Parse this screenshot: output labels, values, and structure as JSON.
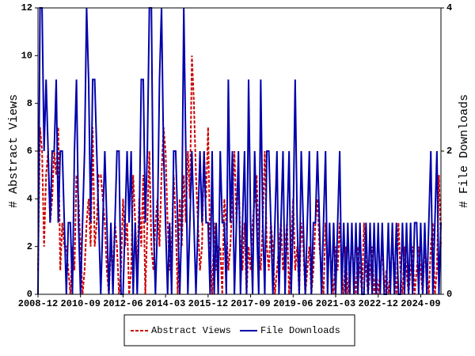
{
  "chart_data": {
    "type": "line",
    "x": [
      "2008-12",
      "2009-01",
      "2009-02",
      "2009-03",
      "2009-04",
      "2009-05",
      "2009-06",
      "2009-07",
      "2009-08",
      "2009-09",
      "2009-10",
      "2009-11",
      "2009-12",
      "2010-01",
      "2010-02",
      "2010-03",
      "2010-04",
      "2010-05",
      "2010-06",
      "2010-07",
      "2010-08",
      "2010-09",
      "2010-10",
      "2010-11",
      "2010-12",
      "2011-01",
      "2011-02",
      "2011-03",
      "2011-04",
      "2011-05",
      "2011-06",
      "2011-07",
      "2011-08",
      "2011-09",
      "2011-10",
      "2011-11",
      "2011-12",
      "2012-01",
      "2012-02",
      "2012-03",
      "2012-04",
      "2012-05",
      "2012-06",
      "2012-07",
      "2012-08",
      "2012-09",
      "2012-10",
      "2012-11",
      "2012-12",
      "2013-01",
      "2013-02",
      "2013-03",
      "2013-04",
      "2013-05",
      "2013-06",
      "2013-07",
      "2013-08",
      "2013-09",
      "2013-10",
      "2013-11",
      "2013-12",
      "2014-01",
      "2014-02",
      "2014-03",
      "2014-04",
      "2014-05",
      "2014-06",
      "2014-07",
      "2014-08",
      "2014-09",
      "2014-10",
      "2014-11",
      "2014-12",
      "2015-01",
      "2015-02",
      "2015-03",
      "2015-04",
      "2015-05",
      "2015-06",
      "2015-07",
      "2015-08",
      "2015-09",
      "2015-10",
      "2015-11",
      "2015-12",
      "2016-01",
      "2016-02",
      "2016-03",
      "2016-04",
      "2016-05",
      "2016-06",
      "2016-07",
      "2016-08",
      "2016-09",
      "2016-10",
      "2016-11",
      "2016-12",
      "2017-01",
      "2017-02",
      "2017-03",
      "2017-04",
      "2017-05",
      "2017-06",
      "2017-07",
      "2017-08",
      "2017-09",
      "2017-10",
      "2017-11",
      "2017-12",
      "2018-01",
      "2018-02",
      "2018-03",
      "2018-04",
      "2018-05",
      "2018-06",
      "2018-07",
      "2018-08",
      "2018-09",
      "2018-10",
      "2018-11",
      "2018-12",
      "2019-01",
      "2019-02",
      "2019-03",
      "2019-04",
      "2019-05",
      "2019-06",
      "2019-07",
      "2019-08",
      "2019-09",
      "2019-10",
      "2019-11",
      "2019-12",
      "2020-01",
      "2020-02",
      "2020-03",
      "2020-04",
      "2020-05",
      "2020-06",
      "2020-07",
      "2020-08",
      "2020-09",
      "2020-10",
      "2020-11",
      "2020-12",
      "2021-01",
      "2021-02",
      "2021-03",
      "2021-04",
      "2021-05",
      "2021-06",
      "2021-07",
      "2021-08",
      "2021-09",
      "2021-10",
      "2021-11",
      "2021-12",
      "2022-01",
      "2022-02",
      "2022-03",
      "2022-04",
      "2022-05",
      "2022-06",
      "2022-07",
      "2022-08",
      "2022-09",
      "2022-10",
      "2022-11",
      "2022-12",
      "2023-01",
      "2023-02",
      "2023-03",
      "2023-04",
      "2023-05",
      "2023-06",
      "2023-07",
      "2023-08",
      "2023-09",
      "2023-10",
      "2023-11",
      "2023-12",
      "2024-01",
      "2024-02",
      "2024-03",
      "2024-04",
      "2024-05",
      "2024-06",
      "2024-07",
      "2024-08",
      "2024-09",
      "2024-10",
      "2024-11",
      "2024-12",
      "2025-01",
      "2025-02",
      "2025-03",
      "2025-04",
      "2025-05",
      "2025-06",
      "2025-07"
    ],
    "xticks": [
      "2008-12",
      "2010-09",
      "2012-06",
      "2014-03",
      "2015-12",
      "2017-09",
      "2019-06",
      "2021-03",
      "2022-12",
      "2024-09"
    ],
    "series": [
      {
        "name": "Abstract Views",
        "color": "#cc0000",
        "dash": true,
        "values": [
          1,
          7,
          6,
          2,
          5,
          6,
          3,
          4,
          6,
          5,
          7,
          1,
          3,
          2,
          2,
          1,
          0,
          2,
          1,
          5,
          4,
          2,
          0,
          1,
          3,
          4,
          2,
          7,
          2,
          3,
          5,
          5,
          4,
          3,
          1,
          0,
          2,
          1,
          3,
          2,
          0,
          1,
          4,
          2,
          3,
          0,
          1,
          5,
          3,
          1,
          4,
          2,
          5,
          0,
          3,
          6,
          2,
          1,
          3,
          4,
          2,
          5,
          7,
          6,
          3,
          1,
          2,
          5,
          3,
          0,
          4,
          2,
          5,
          3,
          6,
          4,
          10,
          8,
          5,
          3,
          1,
          2,
          6,
          4,
          7,
          2,
          0,
          3,
          1,
          2,
          2,
          0,
          4,
          3,
          1,
          2,
          4,
          6,
          3,
          5,
          2,
          1,
          3,
          0,
          2,
          1,
          3,
          4,
          5,
          2,
          1,
          3,
          6,
          2,
          1,
          3,
          2,
          0,
          1,
          2,
          3,
          1,
          2,
          3,
          0,
          2,
          4,
          1,
          2,
          0,
          3,
          2,
          0,
          1,
          2,
          0,
          1,
          3,
          4,
          2,
          1,
          0,
          3,
          1,
          2,
          1,
          0,
          2,
          1,
          3,
          1,
          0,
          2,
          0,
          1,
          2,
          1,
          0,
          2,
          1,
          0,
          3,
          1,
          0,
          1,
          2,
          0,
          1,
          0,
          1,
          2,
          0,
          1,
          0,
          1,
          2,
          1,
          0,
          3,
          1,
          0,
          2,
          1,
          0,
          1,
          2,
          0,
          1,
          2,
          1,
          0,
          2,
          1,
          0,
          2,
          3,
          0,
          1,
          5,
          2
        ]
      },
      {
        "name": "File Downloads",
        "color": "#0000aa",
        "dash": false,
        "axis": "y2",
        "values": [
          0,
          4,
          4,
          2,
          3,
          2,
          1,
          2,
          2,
          3,
          1,
          2,
          2,
          1,
          0,
          1,
          1,
          0,
          2,
          3,
          1,
          0,
          1,
          2,
          4,
          3,
          1,
          3,
          3,
          2,
          1,
          0,
          1,
          2,
          1,
          0,
          1,
          0,
          1,
          2,
          2,
          0,
          0,
          1,
          2,
          1,
          2,
          0,
          1,
          0,
          1,
          3,
          3,
          1,
          2,
          4,
          4,
          1,
          0,
          1,
          3,
          4,
          2,
          1,
          0,
          1,
          0,
          2,
          2,
          1,
          0,
          1,
          4,
          2,
          0,
          1,
          2,
          1,
          0,
          1,
          2,
          1,
          2,
          1,
          1,
          0,
          2,
          0,
          1,
          0,
          2,
          1,
          1,
          0,
          3,
          1,
          2,
          0,
          1,
          2,
          0,
          1,
          2,
          0,
          3,
          1,
          0,
          2,
          1,
          0,
          3,
          1,
          0,
          2,
          2,
          1,
          0,
          1,
          2,
          0,
          1,
          2,
          0,
          1,
          2,
          0,
          1,
          3,
          1,
          0,
          2,
          1,
          0,
          1,
          2,
          0,
          1,
          1,
          2,
          1,
          0,
          1,
          2,
          0,
          1,
          0,
          1,
          0,
          1,
          2,
          0,
          1,
          0,
          1,
          0,
          1,
          0,
          1,
          0,
          1,
          0,
          0,
          1,
          0,
          1,
          0,
          1,
          0,
          1,
          0,
          1,
          0,
          0,
          1,
          0,
          1,
          0,
          1,
          0,
          0,
          1,
          0,
          1,
          0,
          1,
          0,
          1,
          1,
          0,
          1,
          0,
          1,
          0,
          1,
          2,
          0,
          1,
          2,
          0,
          1
        ]
      }
    ],
    "ylabel": "# Abstract Views",
    "y2label": "# File Downloads",
    "ylim": [
      0,
      12
    ],
    "yticks": [
      0,
      2,
      4,
      6,
      8,
      10,
      12
    ],
    "y2lim": [
      0,
      4
    ],
    "y2ticks": [
      0,
      2,
      4
    ],
    "legend": "bottom"
  }
}
